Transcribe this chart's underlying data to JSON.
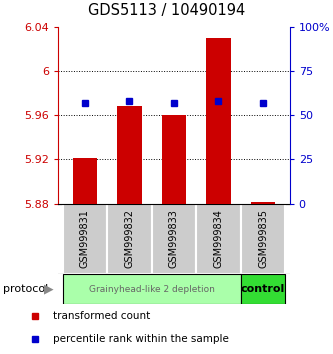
{
  "title": "GDS5113 / 10490194",
  "samples": [
    "GSM999831",
    "GSM999832",
    "GSM999833",
    "GSM999834",
    "GSM999835"
  ],
  "red_values": [
    5.921,
    5.968,
    5.96,
    6.03,
    5.881
  ],
  "blue_values": [
    57,
    58,
    57,
    58,
    57
  ],
  "ylim_left": [
    5.88,
    6.04
  ],
  "ylim_right": [
    0,
    100
  ],
  "yticks_left": [
    5.88,
    5.92,
    5.96,
    6.0,
    6.04
  ],
  "ytick_labels_left": [
    "5.88",
    "5.92",
    "5.96",
    "6",
    "6.04"
  ],
  "yticks_right": [
    0,
    25,
    50,
    75,
    100
  ],
  "ytick_labels_right": [
    "0",
    "25",
    "50",
    "75",
    "100%"
  ],
  "bar_baseline": 5.88,
  "bar_width": 0.55,
  "bar_color": "#cc0000",
  "dot_color": "#0000cc",
  "sample_box_color": "#cccccc",
  "group0_color": "#aaffaa",
  "group1_color": "#33dd33",
  "group0_label": "Grainyhead-like 2 depletion",
  "group1_label": "control",
  "protocol_label": "protocol",
  "grid_ticks": [
    5.92,
    5.96,
    6.0
  ],
  "legend_items": [
    {
      "color": "#cc0000",
      "label": "transformed count"
    },
    {
      "color": "#0000cc",
      "label": "percentile rank within the sample"
    }
  ]
}
